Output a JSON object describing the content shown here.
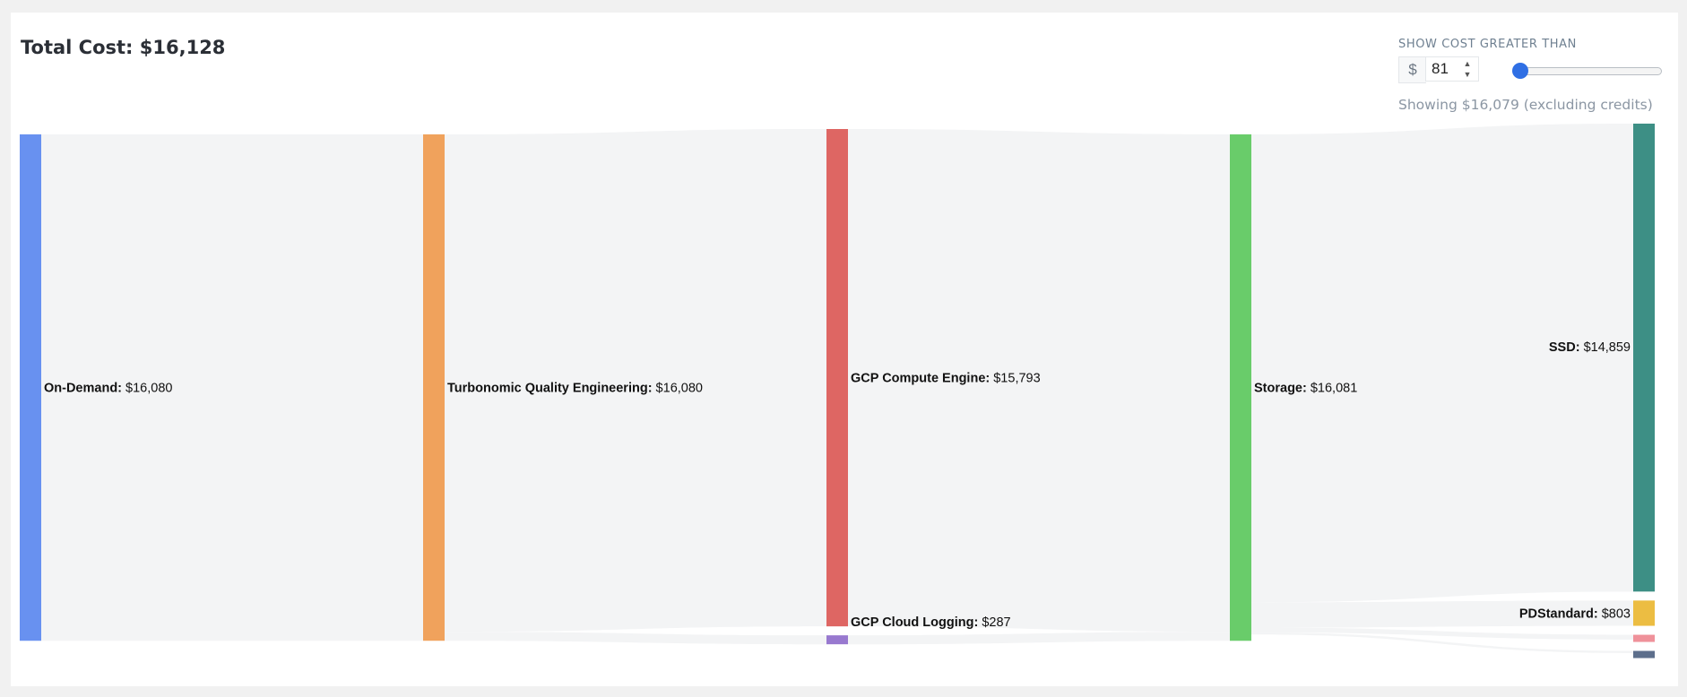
{
  "header": {
    "total_cost": "Total Cost: $16,128"
  },
  "filter": {
    "label": "SHOW COST GREATER THAN",
    "currency": "$",
    "amount": "81",
    "slider_position": 0.0,
    "showing_text": "Showing $16,079 (excluding credits)"
  },
  "colors": {
    "on_demand": "#6891f0",
    "turbonomic": "#f0a25c",
    "compute_engine": "#de6663",
    "cloud_logging": "#9879cf",
    "storage": "#69cc6a",
    "ssd": "#3d8f85",
    "pdstandard": "#ecbd42",
    "unlabeled_pink": "#ef919a",
    "unlabeled_slate": "#5d6f8c",
    "link": "#f3f4f5",
    "slider_thumb": "#2f6fe4"
  },
  "chart_data": {
    "type": "sankey",
    "title": "Total Cost: $16,128",
    "stages": [
      [
        {
          "id": "on_demand",
          "name": "On-Demand:",
          "value_label": " $16,080",
          "value": 16080
        }
      ],
      [
        {
          "id": "turbonomic",
          "name": "Turbonomic Quality Engineering:",
          "value_label": " $16,080",
          "value": 16080
        }
      ],
      [
        {
          "id": "compute_engine",
          "name": "GCP Compute Engine:",
          "value_label": " $15,793",
          "value": 15793
        },
        {
          "id": "cloud_logging",
          "name": "GCP Cloud Logging:",
          "value_label": " $287",
          "value": 287
        }
      ],
      [
        {
          "id": "storage",
          "name": "Storage:",
          "value_label": " $16,081",
          "value": 16081
        }
      ],
      [
        {
          "id": "ssd",
          "name": "SSD:",
          "value_label": " $14,859",
          "value": 14859
        },
        {
          "id": "pdstandard",
          "name": "PDStandard:",
          "value_label": " $803",
          "value": 803
        },
        {
          "id": "unlabeled_pink",
          "name": "",
          "value_label": "",
          "value": 150
        },
        {
          "id": "unlabeled_slate",
          "name": "",
          "value_label": "",
          "value": 70
        }
      ]
    ],
    "links": [
      {
        "source": "on_demand",
        "target": "turbonomic",
        "value": 16080
      },
      {
        "source": "turbonomic",
        "target": "compute_engine",
        "value": 15793
      },
      {
        "source": "turbonomic",
        "target": "cloud_logging",
        "value": 287
      },
      {
        "source": "compute_engine",
        "target": "storage",
        "value": 15793
      },
      {
        "source": "cloud_logging",
        "target": "storage",
        "value": 287
      },
      {
        "source": "storage",
        "target": "ssd",
        "value": 14859
      },
      {
        "source": "storage",
        "target": "pdstandard",
        "value": 803
      },
      {
        "source": "storage",
        "target": "unlabeled_pink",
        "value": 150
      },
      {
        "source": "storage",
        "target": "unlabeled_slate",
        "value": 70
      }
    ]
  }
}
